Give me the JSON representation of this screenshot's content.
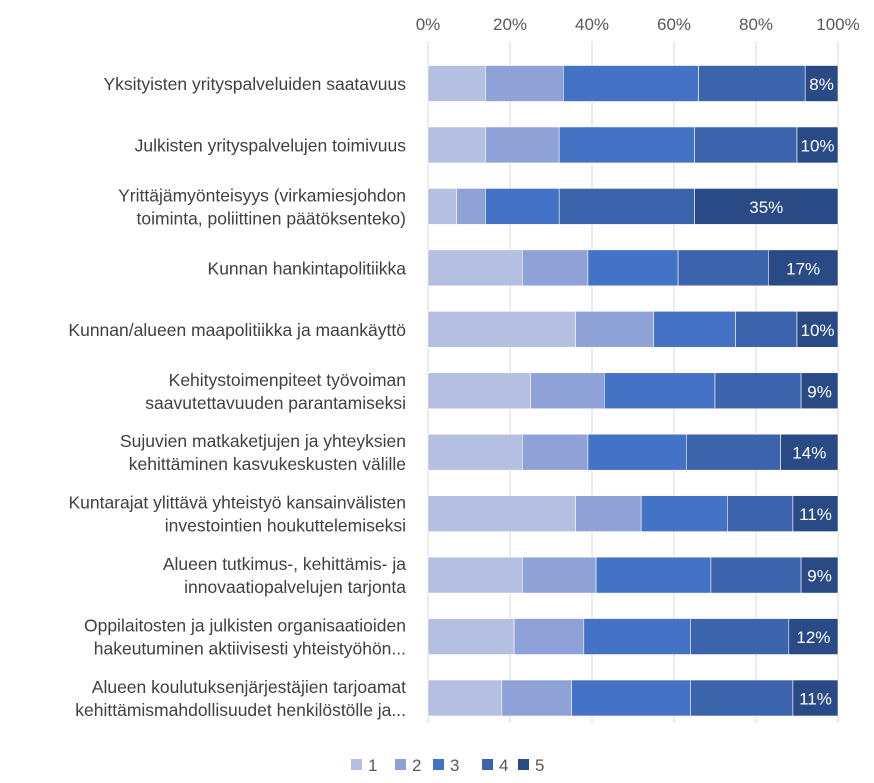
{
  "chart_data": {
    "type": "bar",
    "orientation": "horizontal",
    "stacked": "percent",
    "x_ticks": [
      "0%",
      "20%",
      "40%",
      "60%",
      "80%",
      "100%"
    ],
    "xlim": [
      0,
      100
    ],
    "grid": true,
    "legend_position": "bottom",
    "categories": [
      [
        "Yksityisten yrityspalveluiden saatavuus"
      ],
      [
        "Julkisten yrityspalvelujen toimivuus"
      ],
      [
        "Yrittäjämyönteisyys (virkamiesjohdon",
        "toiminta, poliittinen päätöksenteko)"
      ],
      [
        "Kunnan hankintapolitiikka"
      ],
      [
        "Kunnan/alueen maapolitiikka ja maankäyttö"
      ],
      [
        "Kehitystoimenpiteet työvoiman",
        "saavutettavuuden parantamiseksi"
      ],
      [
        "Sujuvien matkaketjujen ja yhteyksien",
        "kehittäminen kasvukeskusten välille"
      ],
      [
        "Kuntarajat ylittävä yhteistyö kansainvälisten",
        "investointien houkuttelemiseksi"
      ],
      [
        "Alueen tutkimus-, kehittämis- ja",
        "innovaatiopalvelujen tarjonta"
      ],
      [
        "Oppilaitosten ja julkisten organisaatioiden",
        "hakeutuminen aktiivisesti yhteistyöhön..."
      ],
      [
        "Alueen koulutuksenjärjestäjien tarjoamat",
        "kehittämismahdollisuudet henkilöstölle ja..."
      ]
    ],
    "series": [
      {
        "name": "1",
        "color": "#b4bfe2",
        "values": [
          14,
          14,
          7,
          23,
          36,
          25,
          23,
          36,
          23,
          21,
          18
        ]
      },
      {
        "name": "2",
        "color": "#8fa2d8",
        "values": [
          19,
          18,
          7,
          16,
          19,
          18,
          16,
          16,
          18,
          17,
          17
        ]
      },
      {
        "name": "3",
        "color": "#4472c4",
        "values": [
          33,
          33,
          18,
          22,
          20,
          27,
          24,
          21,
          28,
          26,
          29
        ]
      },
      {
        "name": "4",
        "color": "#3b64ad",
        "values": [
          26,
          25,
          33,
          22,
          15,
          21,
          23,
          16,
          22,
          24,
          25
        ]
      },
      {
        "name": "5",
        "color": "#2a4a86",
        "values": [
          8,
          10,
          35,
          17,
          10,
          9,
          14,
          11,
          9,
          12,
          11
        ]
      }
    ],
    "data_labels": [
      "8%",
      "10%",
      "35%",
      "17%",
      "10%",
      "9%",
      "14%",
      "11%",
      "9%",
      "12%",
      "11%"
    ]
  }
}
